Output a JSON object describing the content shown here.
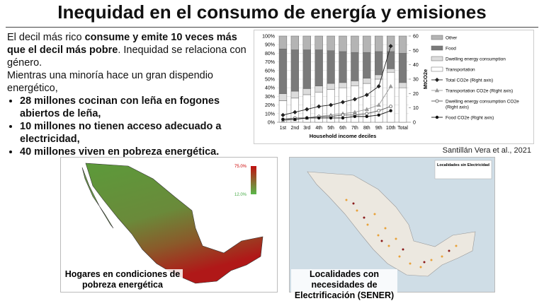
{
  "header": {
    "title": "Inequidad en el consumo de energía y emisiones"
  },
  "intro": {
    "parts": [
      "El decil más rico ",
      "consume y emite 10 veces más que el decil más pobre",
      ". Inequidad se relaciona con género."
    ]
  },
  "intro2": "Mientras una minoría hace un gran dispendio energético,",
  "bullets": [
    "28 millones cocinan con leña en fogones abiertos de leña,",
    "10 millones no tienen acceso adecuado a electricidad,",
    "40 millones viven en pobreza energética."
  ],
  "chart_data": {
    "type": "bar",
    "stacked": true,
    "xlabel": "Household income deciles",
    "y2label": "MtCO2e",
    "categories": [
      "1st",
      "2nd",
      "3rd",
      "4th",
      "5th",
      "6th",
      "7th",
      "8th",
      "9th",
      "10th",
      "Total"
    ],
    "ylim": [
      0,
      100
    ],
    "yticks": [
      {
        "value": 0,
        "label": "0%"
      },
      {
        "value": 10,
        "label": "10%"
      },
      {
        "value": 20,
        "label": "20%"
      },
      {
        "value": 30,
        "label": "30%"
      },
      {
        "value": 40,
        "label": "40%"
      },
      {
        "value": 50,
        "label": "50%"
      },
      {
        "value": 60,
        "label": "60%"
      },
      {
        "value": 70,
        "label": "70%"
      },
      {
        "value": 80,
        "label": "80%"
      },
      {
        "value": 90,
        "label": "90%"
      },
      {
        "value": 100,
        "label": "100%"
      }
    ],
    "y2lim": [
      0,
      60
    ],
    "y2ticks": [
      0,
      10,
      20,
      30,
      40,
      50,
      60
    ],
    "series": [
      {
        "name": "Transportation",
        "color": "#ffffff",
        "values": [
          25,
          28,
          32,
          35,
          38,
          40,
          42,
          45,
          50,
          58,
          40
        ]
      },
      {
        "name": "Dwelling energy consumption",
        "color": "#dcdcdc",
        "values": [
          8,
          8,
          7,
          7,
          7,
          6,
          6,
          6,
          5,
          4,
          6
        ]
      },
      {
        "name": "Food",
        "color": "#7a7a7a",
        "values": [
          52,
          48,
          45,
          42,
          38,
          36,
          33,
          30,
          27,
          20,
          34
        ]
      },
      {
        "name": "Other",
        "color": "#b4b4b4",
        "values": [
          15,
          16,
          16,
          16,
          17,
          18,
          19,
          19,
          18,
          18,
          20
        ]
      },
      {
        "name": "Total CO2e (Right axis)",
        "color": "#222222",
        "marker": "diamond",
        "axis": "y2",
        "values": [
          5,
          7,
          9,
          11,
          12,
          14,
          16,
          19,
          25,
          53,
          null
        ]
      },
      {
        "name": "Transportation CO2e (Right axis)",
        "color": "#999999",
        "marker": "triangle",
        "axis": "y2",
        "values": [
          1,
          2,
          3,
          4,
          5,
          6,
          7,
          9,
          12,
          25,
          null
        ]
      },
      {
        "name": "Dwelling energy consumption CO2e (Right axis)",
        "color": "#555555",
        "marker": "open-circle",
        "axis": "y2",
        "values": [
          2,
          3,
          3,
          4,
          4,
          5,
          5,
          6,
          8,
          11,
          null
        ]
      },
      {
        "name": "Food CO2e (Right axis)",
        "color": "#111111",
        "marker": "circle",
        "axis": "y2",
        "values": [
          2,
          2,
          3,
          3,
          3,
          3,
          4,
          4,
          5,
          8,
          null
        ]
      }
    ]
  },
  "credit": "Santillán Vera  et al., 2021",
  "map1": {
    "legend_max": "75.0%",
    "legend_min": "12.0%",
    "caption": "Hogares en condiciones de pobreza energética"
  },
  "map2": {
    "legend_title": "Localidades sin Electricidad",
    "caption": "Localidades con necesidades de Electrificación (SENER)"
  }
}
